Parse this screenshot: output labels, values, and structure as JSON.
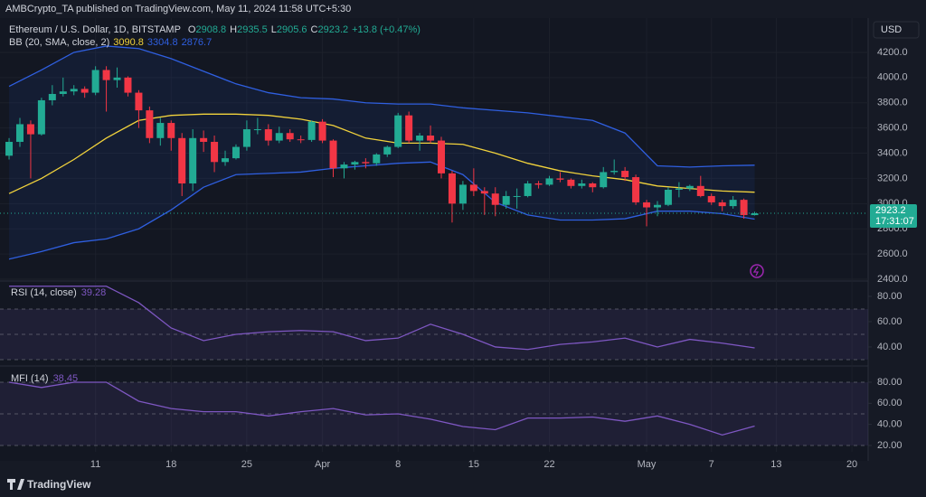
{
  "page": {
    "published": "AMBCrypto_TA published on TradingView.com, May 11, 2024 11:58 UTC+5:30",
    "brand": "TradingView"
  },
  "chart_data": [
    {
      "type": "candlestick",
      "title": "Ethereum / U.S. Dollar, 1D, BITSTAMP",
      "ohlc_letters": [
        "O",
        "H",
        "L",
        "C"
      ],
      "change": "+13.8 (+0.47%)",
      "indicator": "BB (20, SMA, close, 2)",
      "currency": "USD",
      "countdown": "17:31:07",
      "colors": {
        "up": "#22ab94",
        "down": "#f23645"
      },
      "grid": true,
      "xlim": [
        -0.84,
        79.5
      ],
      "xticks": [
        {
          "value": 8,
          "label": "11"
        },
        {
          "value": 15,
          "label": "18"
        },
        {
          "value": 22,
          "label": "25"
        },
        {
          "value": 29,
          "label": "Apr"
        },
        {
          "value": 36,
          "label": "8"
        },
        {
          "value": 43,
          "label": "15"
        },
        {
          "value": 50,
          "label": "22"
        },
        {
          "value": 59,
          "label": "May"
        },
        {
          "value": 65,
          "label": "7"
        },
        {
          "value": 71,
          "label": "13"
        },
        {
          "value": 78,
          "label": "20"
        }
      ],
      "ylim": [
        2393,
        4472
      ],
      "yticks": [
        {
          "value": 2400,
          "label": "2400.0"
        },
        {
          "value": 2600,
          "label": "2600.0"
        },
        {
          "value": 2800,
          "label": "2800.0"
        },
        {
          "value": 3000,
          "label": "3000.0"
        },
        {
          "value": 3200,
          "label": "3200.0"
        },
        {
          "value": 3400,
          "label": "3400.0"
        },
        {
          "value": 3600,
          "label": "3600.0"
        },
        {
          "value": 3800,
          "label": "3800.0"
        },
        {
          "value": 4000,
          "label": "4000.0"
        },
        {
          "value": 4200,
          "label": "4200.0"
        }
      ],
      "candles": [
        [
          3380,
          3520,
          3350,
          3490
        ],
        [
          3490,
          3680,
          3450,
          3630
        ],
        [
          3630,
          3660,
          3200,
          3550
        ],
        [
          3550,
          3840,
          3540,
          3820
        ],
        [
          3820,
          3940,
          3780,
          3870
        ],
        [
          3870,
          4000,
          3850,
          3890
        ],
        [
          3890,
          3940,
          3860,
          3910
        ],
        [
          3910,
          3930,
          3840,
          3880
        ],
        [
          3880,
          4090,
          3860,
          4060
        ],
        [
          4060,
          4090,
          3730,
          3980
        ],
        [
          3980,
          4080,
          3920,
          4000
        ],
        [
          4000,
          4010,
          3850,
          3880
        ],
        [
          3880,
          3900,
          3600,
          3740
        ],
        [
          3740,
          3770,
          3480,
          3520
        ],
        [
          3520,
          3680,
          3460,
          3640
        ],
        [
          3640,
          3660,
          3420,
          3520
        ],
        [
          3520,
          3560,
          3060,
          3160
        ],
        [
          3160,
          3590,
          3100,
          3520
        ],
        [
          3520,
          3580,
          3410,
          3490
        ],
        [
          3490,
          3540,
          3250,
          3330
        ],
        [
          3330,
          3420,
          3300,
          3360
        ],
        [
          3360,
          3470,
          3350,
          3450
        ],
        [
          3450,
          3660,
          3420,
          3590
        ],
        [
          3590,
          3680,
          3550,
          3590
        ],
        [
          3590,
          3630,
          3460,
          3500
        ],
        [
          3500,
          3610,
          3480,
          3560
        ],
        [
          3560,
          3590,
          3490,
          3510
        ],
        [
          3510,
          3540,
          3480,
          3505
        ],
        [
          3505,
          3660,
          3490,
          3650
        ],
        [
          3650,
          3670,
          3480,
          3500
        ],
        [
          3500,
          3510,
          3210,
          3280
        ],
        [
          3280,
          3330,
          3200,
          3310
        ],
        [
          3310,
          3340,
          3270,
          3330
        ],
        [
          3330,
          3360,
          3280,
          3320
        ],
        [
          3320,
          3400,
          3300,
          3390
        ],
        [
          3390,
          3460,
          3370,
          3450
        ],
        [
          3450,
          3720,
          3440,
          3700
        ],
        [
          3700,
          3730,
          3480,
          3500
        ],
        [
          3500,
          3560,
          3420,
          3540
        ],
        [
          3540,
          3620,
          3480,
          3500
        ],
        [
          3500,
          3530,
          3200,
          3240
        ],
        [
          3240,
          3260,
          2850,
          3000
        ],
        [
          3000,
          3180,
          2950,
          3150
        ],
        [
          3150,
          3280,
          3060,
          3100
        ],
        [
          3100,
          3130,
          2910,
          3080
        ],
        [
          3080,
          3130,
          2900,
          2990
        ],
        [
          2990,
          3100,
          2960,
          3060
        ],
        [
          3060,
          3120,
          2960,
          3060
        ],
        [
          3060,
          3180,
          3050,
          3160
        ],
        [
          3160,
          3180,
          3120,
          3150
        ],
        [
          3150,
          3220,
          3140,
          3200
        ],
        [
          3200,
          3250,
          3170,
          3190
        ],
        [
          3190,
          3200,
          3120,
          3140
        ],
        [
          3140,
          3190,
          3120,
          3160
        ],
        [
          3160,
          3170,
          3090,
          3130
        ],
        [
          3130,
          3290,
          3120,
          3250
        ],
        [
          3250,
          3350,
          3230,
          3260
        ],
        [
          3260,
          3290,
          3180,
          3210
        ],
        [
          3210,
          3230,
          2990,
          3010
        ],
        [
          3010,
          3030,
          2820,
          2970
        ],
        [
          2970,
          3020,
          2900,
          2990
        ],
        [
          2990,
          3130,
          2980,
          3110
        ],
        [
          3110,
          3170,
          3050,
          3120
        ],
        [
          3120,
          3150,
          3100,
          3140
        ],
        [
          3140,
          3220,
          3050,
          3060
        ],
        [
          3060,
          3080,
          2990,
          3010
        ],
        [
          3010,
          3030,
          2940,
          2980
        ],
        [
          2980,
          3060,
          2960,
          3030
        ],
        [
          3030,
          3040,
          2880,
          2909.4
        ],
        [
          2908.8,
          2935.5,
          2905.6,
          2923.2
        ]
      ],
      "series": [
        {
          "color": "#f2d33c",
          "x": [
            0,
            3,
            6,
            9,
            12,
            15,
            18,
            21,
            24,
            27,
            30,
            33,
            36,
            39,
            42,
            45,
            48,
            51,
            54,
            57,
            60,
            63,
            66,
            69
          ],
          "values": [
            3080,
            3200,
            3350,
            3520,
            3660,
            3700,
            3710,
            3710,
            3700,
            3670,
            3620,
            3520,
            3480,
            3480,
            3470,
            3400,
            3320,
            3260,
            3220,
            3190,
            3140,
            3120,
            3100,
            3090.8
          ]
        },
        {
          "color": "#2f5fe0",
          "x": [
            0,
            3,
            6,
            9,
            12,
            15,
            18,
            21,
            24,
            27,
            30,
            33,
            36,
            39,
            42,
            45,
            48,
            51,
            54,
            57,
            60,
            63,
            66,
            69
          ],
          "values": [
            3930,
            4060,
            4200,
            4250,
            4230,
            4150,
            4050,
            3950,
            3880,
            3840,
            3830,
            3800,
            3790,
            3790,
            3760,
            3740,
            3720,
            3690,
            3660,
            3560,
            3300,
            3290,
            3300,
            3304.8
          ]
        },
        {
          "color": "#2f5fe0",
          "x": [
            0,
            3,
            6,
            9,
            12,
            15,
            18,
            21,
            24,
            27,
            30,
            33,
            36,
            39,
            42,
            45,
            48,
            51,
            54,
            57,
            60,
            63,
            66,
            69
          ],
          "values": [
            2560,
            2620,
            2690,
            2720,
            2800,
            2950,
            3130,
            3230,
            3240,
            3250,
            3280,
            3300,
            3320,
            3330,
            3230,
            3010,
            2910,
            2870,
            2870,
            2880,
            2940,
            2940,
            2920,
            2876.7
          ]
        }
      ]
    },
    {
      "type": "line",
      "title": "RSI (14, close)",
      "ylim": [
        26.4,
        91.4
      ],
      "yticks": [
        {
          "value": 40,
          "label": "40.00"
        },
        {
          "value": 60,
          "label": "60.00"
        },
        {
          "value": 80,
          "label": "80.00"
        }
      ],
      "bands": [
        30,
        50,
        70
      ],
      "series": [
        {
          "color": "#7e57c2",
          "x": [
            0,
            3,
            6,
            9,
            12,
            15,
            18,
            21,
            24,
            27,
            30,
            33,
            36,
            39,
            42,
            45,
            48,
            51,
            54,
            57,
            60,
            63,
            66,
            69
          ],
          "values": [
            88,
            88,
            88,
            88,
            75,
            55,
            45,
            50,
            52,
            53,
            52,
            45,
            47,
            58,
            50,
            40,
            38,
            42,
            44,
            47,
            40,
            46,
            43,
            39.28
          ]
        }
      ]
    },
    {
      "type": "line",
      "title": "MFI (14)",
      "ylim": [
        14,
        93.7
      ],
      "yticks": [
        {
          "value": 20,
          "label": "20.00"
        },
        {
          "value": 40,
          "label": "40.00"
        },
        {
          "value": 60,
          "label": "60.00"
        },
        {
          "value": 80,
          "label": "80.00"
        }
      ],
      "bands": [
        20,
        50,
        80
      ],
      "series": [
        {
          "color": "#7e57c2",
          "x": [
            0,
            3,
            6,
            9,
            12,
            15,
            18,
            21,
            24,
            27,
            30,
            33,
            36,
            39,
            42,
            45,
            48,
            51,
            54,
            57,
            60,
            63,
            66,
            69
          ],
          "values": [
            80,
            75,
            80,
            80,
            62,
            55,
            52,
            52,
            48,
            52,
            55,
            49,
            50,
            45,
            38,
            35,
            46,
            46,
            47,
            43,
            48,
            40,
            30,
            38.45
          ]
        }
      ]
    }
  ]
}
